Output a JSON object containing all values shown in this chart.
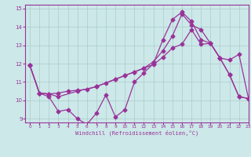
{
  "bg_color": "#cce8e8",
  "line_color": "#993399",
  "xlabel": "Windchill (Refroidissement éolien,°C)",
  "xlim": [
    -0.5,
    23
  ],
  "ylim": [
    8.8,
    15.2
  ],
  "yticks": [
    9,
    10,
    11,
    12,
    13,
    14,
    15
  ],
  "xticks": [
    0,
    1,
    2,
    3,
    4,
    5,
    6,
    7,
    8,
    9,
    10,
    11,
    12,
    13,
    14,
    15,
    16,
    17,
    18,
    19,
    20,
    21,
    22,
    23
  ],
  "series1_x": [
    0,
    1,
    2,
    3,
    4,
    5,
    6,
    7,
    8,
    9,
    10,
    11,
    12,
    13,
    14,
    15,
    16,
    17,
    18,
    19,
    20,
    21,
    22,
    23
  ],
  "series1_y": [
    11.9,
    10.4,
    10.35,
    10.4,
    10.5,
    10.55,
    10.6,
    10.75,
    10.95,
    11.15,
    11.35,
    11.55,
    11.75,
    11.95,
    12.35,
    12.85,
    13.05,
    13.85,
    13.05,
    13.1,
    12.3,
    11.4,
    10.2,
    10.1
  ],
  "series2_x": [
    0,
    1,
    2,
    3,
    4,
    5,
    6,
    7,
    8,
    9,
    10,
    11,
    12,
    13,
    14,
    15,
    16,
    17,
    18,
    19,
    20,
    21,
    22,
    23
  ],
  "series2_y": [
    11.9,
    10.4,
    10.2,
    9.4,
    9.5,
    9.0,
    8.7,
    9.3,
    10.3,
    9.1,
    9.5,
    11.0,
    11.5,
    12.0,
    13.3,
    14.4,
    14.8,
    14.3,
    13.3,
    13.1,
    12.3,
    12.2,
    12.5,
    10.1
  ],
  "series3_x": [
    0,
    1,
    2,
    3,
    5,
    7,
    9,
    10,
    11,
    12,
    13,
    14,
    15,
    16,
    17,
    18,
    19,
    20,
    21,
    22,
    23
  ],
  "series3_y": [
    11.9,
    10.4,
    10.35,
    10.2,
    10.5,
    10.75,
    11.15,
    11.35,
    11.55,
    11.75,
    12.1,
    12.7,
    13.5,
    14.7,
    14.1,
    13.85,
    13.1,
    12.3,
    11.4,
    10.2,
    10.1
  ],
  "grid_color": "#aacccc",
  "marker": "D",
  "marker_size": 2.5,
  "linewidth": 0.9
}
